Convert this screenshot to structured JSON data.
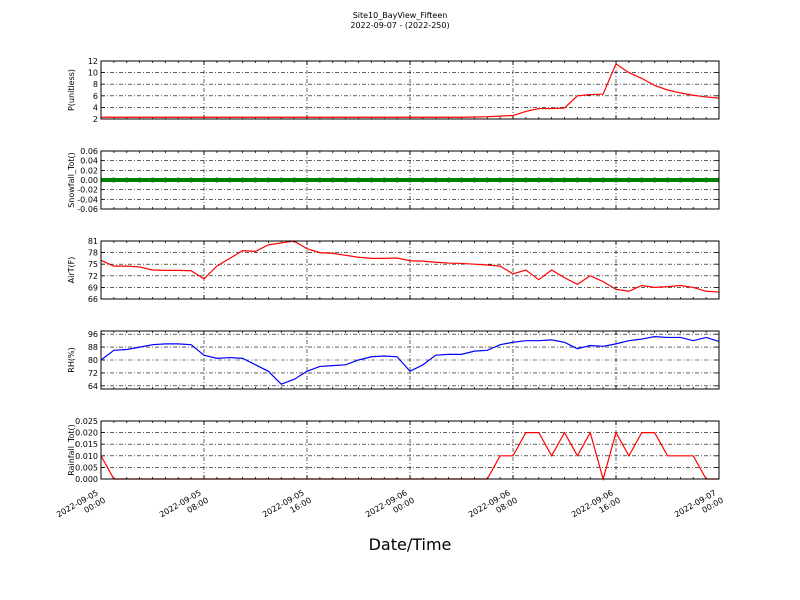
{
  "chart_data": [
    {
      "type": "line",
      "title": "Site10_BayView_Fifteen",
      "subtitle": "2022-09-07 - (2022-250)",
      "ylabel": "P(unitless)",
      "x": [
        "2022-09-05 00:00",
        "2022-09-05 01:00",
        "2022-09-05 02:00",
        "2022-09-05 03:00",
        "2022-09-05 04:00",
        "2022-09-05 05:00",
        "2022-09-05 06:00",
        "2022-09-05 07:00",
        "2022-09-05 08:00",
        "2022-09-05 09:00",
        "2022-09-05 10:00",
        "2022-09-05 11:00",
        "2022-09-05 12:00",
        "2022-09-05 13:00",
        "2022-09-05 14:00",
        "2022-09-05 15:00",
        "2022-09-05 16:00",
        "2022-09-05 17:00",
        "2022-09-05 18:00",
        "2022-09-05 19:00",
        "2022-09-05 20:00",
        "2022-09-05 21:00",
        "2022-09-05 22:00",
        "2022-09-05 23:00",
        "2022-09-06 00:00",
        "2022-09-06 01:00",
        "2022-09-06 02:00",
        "2022-09-06 03:00",
        "2022-09-06 04:00",
        "2022-09-06 05:00",
        "2022-09-06 06:00",
        "2022-09-06 07:00",
        "2022-09-06 08:00",
        "2022-09-06 09:00",
        "2022-09-06 10:00",
        "2022-09-06 11:00",
        "2022-09-06 12:00",
        "2022-09-06 13:00",
        "2022-09-06 14:00",
        "2022-09-06 15:00",
        "2022-09-06 16:00",
        "2022-09-06 17:00",
        "2022-09-06 18:00",
        "2022-09-06 19:00",
        "2022-09-06 20:00",
        "2022-09-06 21:00",
        "2022-09-06 22:00",
        "2022-09-06 23:00",
        "2022-09-07 00:00"
      ],
      "values": [
        2.3,
        2.3,
        2.3,
        2.3,
        2.3,
        2.3,
        2.3,
        2.3,
        2.3,
        2.3,
        2.3,
        2.3,
        2.3,
        2.3,
        2.3,
        2.3,
        2.3,
        2.3,
        2.3,
        2.3,
        2.3,
        2.3,
        2.3,
        2.3,
        2.3,
        2.3,
        2.3,
        2.3,
        2.3,
        2.35,
        2.4,
        2.5,
        2.6,
        3.3,
        3.8,
        3.8,
        3.9,
        6.0,
        6.2,
        6.3,
        11.5,
        10.0,
        9.0,
        7.8,
        7.0,
        6.5,
        6.1,
        5.8,
        5.6
      ],
      "color": "#ff0000",
      "xlim": [
        "2022-09-05 00:00",
        "2022-09-07 00:00"
      ],
      "xticks": [
        "2022-09-05 00:00",
        "2022-09-05 08:00",
        "2022-09-05 16:00",
        "2022-09-06 00:00",
        "2022-09-06 08:00",
        "2022-09-06 16:00",
        "2022-09-07 00:00"
      ],
      "ylim": [
        2,
        12
      ],
      "yticks": [
        2,
        4,
        6,
        8,
        10,
        12
      ],
      "grid": true,
      "show_xticklabels": false
    },
    {
      "type": "line",
      "ylabel": "Snowfall_Tot()",
      "x": [
        "2022-09-05 00:00",
        "2022-09-05 01:00",
        "2022-09-05 02:00",
        "2022-09-05 03:00",
        "2022-09-05 04:00",
        "2022-09-05 05:00",
        "2022-09-05 06:00",
        "2022-09-05 07:00",
        "2022-09-05 08:00",
        "2022-09-05 09:00",
        "2022-09-05 10:00",
        "2022-09-05 11:00",
        "2022-09-05 12:00",
        "2022-09-05 13:00",
        "2022-09-05 14:00",
        "2022-09-05 15:00",
        "2022-09-05 16:00",
        "2022-09-05 17:00",
        "2022-09-05 18:00",
        "2022-09-05 19:00",
        "2022-09-05 20:00",
        "2022-09-05 21:00",
        "2022-09-05 22:00",
        "2022-09-05 23:00",
        "2022-09-06 00:00",
        "2022-09-06 01:00",
        "2022-09-06 02:00",
        "2022-09-06 03:00",
        "2022-09-06 04:00",
        "2022-09-06 05:00",
        "2022-09-06 06:00",
        "2022-09-06 07:00",
        "2022-09-06 08:00",
        "2022-09-06 09:00",
        "2022-09-06 10:00",
        "2022-09-06 11:00",
        "2022-09-06 12:00",
        "2022-09-06 13:00",
        "2022-09-06 14:00",
        "2022-09-06 15:00",
        "2022-09-06 16:00",
        "2022-09-06 17:00",
        "2022-09-06 18:00",
        "2022-09-06 19:00",
        "2022-09-06 20:00",
        "2022-09-06 21:00",
        "2022-09-06 22:00",
        "2022-09-06 23:00",
        "2022-09-07 00:00"
      ],
      "values": [
        0,
        0,
        0,
        0,
        0,
        0,
        0,
        0,
        0,
        0,
        0,
        0,
        0,
        0,
        0,
        0,
        0,
        0,
        0,
        0,
        0,
        0,
        0,
        0,
        0,
        0,
        0,
        0,
        0,
        0,
        0,
        0,
        0,
        0,
        0,
        0,
        0,
        0,
        0,
        0,
        0,
        0,
        0,
        0,
        0,
        0,
        0,
        0,
        0
      ],
      "color": "#008000",
      "marker": "o",
      "xlim": [
        "2022-09-05 00:00",
        "2022-09-07 00:00"
      ],
      "xticks": [
        "2022-09-05 00:00",
        "2022-09-05 08:00",
        "2022-09-05 16:00",
        "2022-09-06 00:00",
        "2022-09-06 08:00",
        "2022-09-06 16:00",
        "2022-09-07 00:00"
      ],
      "ylim": [
        -0.06,
        0.06
      ],
      "yticks": [
        -0.06,
        -0.04,
        -0.02,
        {
          "value": 0,
          "label": "0.00"
        },
        0.02,
        0.04,
        0.06
      ],
      "grid": true,
      "show_xticklabels": false
    },
    {
      "type": "line",
      "ylabel": "AirT(F)",
      "x": [
        "2022-09-05 00:00",
        "2022-09-05 01:00",
        "2022-09-05 02:00",
        "2022-09-05 03:00",
        "2022-09-05 04:00",
        "2022-09-05 05:00",
        "2022-09-05 06:00",
        "2022-09-05 07:00",
        "2022-09-05 08:00",
        "2022-09-05 09:00",
        "2022-09-05 10:00",
        "2022-09-05 11:00",
        "2022-09-05 12:00",
        "2022-09-05 13:00",
        "2022-09-05 14:00",
        "2022-09-05 15:00",
        "2022-09-05 16:00",
        "2022-09-05 17:00",
        "2022-09-05 18:00",
        "2022-09-05 19:00",
        "2022-09-05 20:00",
        "2022-09-05 21:00",
        "2022-09-05 22:00",
        "2022-09-05 23:00",
        "2022-09-06 00:00",
        "2022-09-06 01:00",
        "2022-09-06 02:00",
        "2022-09-06 03:00",
        "2022-09-06 04:00",
        "2022-09-06 05:00",
        "2022-09-06 06:00",
        "2022-09-06 07:00",
        "2022-09-06 08:00",
        "2022-09-06 09:00",
        "2022-09-06 10:00",
        "2022-09-06 11:00",
        "2022-09-06 12:00",
        "2022-09-06 13:00",
        "2022-09-06 14:00",
        "2022-09-06 15:00",
        "2022-09-06 16:00",
        "2022-09-06 17:00",
        "2022-09-06 18:00",
        "2022-09-06 19:00",
        "2022-09-06 20:00",
        "2022-09-06 21:00",
        "2022-09-06 22:00",
        "2022-09-06 23:00",
        "2022-09-07 00:00"
      ],
      "values": [
        76,
        74.5,
        74.5,
        74.3,
        73.5,
        73.4,
        73.4,
        73.3,
        71.2,
        74.5,
        76.5,
        78.5,
        78.3,
        80,
        80.5,
        81,
        79,
        78,
        77.8,
        77.3,
        76.8,
        76.5,
        76.5,
        76.6,
        75.9,
        75.8,
        75.5,
        75.3,
        75.2,
        75,
        74.8,
        74.5,
        72.5,
        73.5,
        71,
        73.5,
        71.5,
        69.8,
        72,
        70.5,
        68.5,
        68,
        69.5,
        69,
        69.2,
        69.5,
        69,
        68,
        67.8
      ],
      "color": "#ff0000",
      "xlim": [
        "2022-09-05 00:00",
        "2022-09-07 00:00"
      ],
      "xticks": [
        "2022-09-05 00:00",
        "2022-09-05 08:00",
        "2022-09-05 16:00",
        "2022-09-06 00:00",
        "2022-09-06 08:00",
        "2022-09-06 16:00",
        "2022-09-07 00:00"
      ],
      "ylim": [
        66,
        81
      ],
      "yticks": [
        66,
        69,
        72,
        75,
        78,
        81
      ],
      "grid": true,
      "show_xticklabels": false
    },
    {
      "type": "line",
      "ylabel": "RH(%)",
      "x": [
        "2022-09-05 00:00",
        "2022-09-05 01:00",
        "2022-09-05 02:00",
        "2022-09-05 03:00",
        "2022-09-05 04:00",
        "2022-09-05 05:00",
        "2022-09-05 06:00",
        "2022-09-05 07:00",
        "2022-09-05 08:00",
        "2022-09-05 09:00",
        "2022-09-05 10:00",
        "2022-09-05 11:00",
        "2022-09-05 12:00",
        "2022-09-05 13:00",
        "2022-09-05 14:00",
        "2022-09-05 15:00",
        "2022-09-05 16:00",
        "2022-09-05 17:00",
        "2022-09-05 18:00",
        "2022-09-05 19:00",
        "2022-09-05 20:00",
        "2022-09-05 21:00",
        "2022-09-05 22:00",
        "2022-09-05 23:00",
        "2022-09-06 00:00",
        "2022-09-06 01:00",
        "2022-09-06 02:00",
        "2022-09-06 03:00",
        "2022-09-06 04:00",
        "2022-09-06 05:00",
        "2022-09-06 06:00",
        "2022-09-06 07:00",
        "2022-09-06 08:00",
        "2022-09-06 09:00",
        "2022-09-06 10:00",
        "2022-09-06 11:00",
        "2022-09-06 12:00",
        "2022-09-06 13:00",
        "2022-09-06 14:00",
        "2022-09-06 15:00",
        "2022-09-06 16:00",
        "2022-09-06 17:00",
        "2022-09-06 18:00",
        "2022-09-06 19:00",
        "2022-09-06 20:00",
        "2022-09-06 21:00",
        "2022-09-06 22:00",
        "2022-09-06 23:00",
        "2022-09-07 00:00"
      ],
      "values": [
        80,
        86,
        86.5,
        88,
        89.5,
        90,
        90,
        89.5,
        83,
        81,
        81.5,
        81,
        77,
        73,
        65,
        68,
        73,
        76,
        76.5,
        77,
        80,
        82,
        82.5,
        82,
        73,
        77,
        83,
        83.5,
        83.5,
        85.5,
        86,
        89.5,
        91,
        92,
        92,
        92.5,
        91,
        87,
        89,
        88.5,
        90,
        92,
        93,
        94.5,
        94,
        94,
        92,
        94,
        91.5
      ],
      "color": "#0000ff",
      "xlim": [
        "2022-09-05 00:00",
        "2022-09-07 00:00"
      ],
      "xticks": [
        "2022-09-05 00:00",
        "2022-09-05 08:00",
        "2022-09-05 16:00",
        "2022-09-06 00:00",
        "2022-09-06 08:00",
        "2022-09-06 16:00",
        "2022-09-07 00:00"
      ],
      "ylim": [
        62,
        98
      ],
      "yticks": [
        64,
        72,
        80,
        88,
        96
      ],
      "grid": true,
      "show_xticklabels": false
    },
    {
      "type": "line",
      "ylabel": "Rainfall_Tot()",
      "xlabel": "Date/Time",
      "x": [
        "2022-09-05 00:00",
        "2022-09-05 01:00",
        "2022-09-05 02:00",
        "2022-09-05 03:00",
        "2022-09-05 04:00",
        "2022-09-05 05:00",
        "2022-09-05 06:00",
        "2022-09-05 07:00",
        "2022-09-05 08:00",
        "2022-09-05 09:00",
        "2022-09-05 10:00",
        "2022-09-05 11:00",
        "2022-09-05 12:00",
        "2022-09-05 13:00",
        "2022-09-05 14:00",
        "2022-09-05 15:00",
        "2022-09-05 16:00",
        "2022-09-05 17:00",
        "2022-09-05 18:00",
        "2022-09-05 19:00",
        "2022-09-05 20:00",
        "2022-09-05 21:00",
        "2022-09-05 22:00",
        "2022-09-05 23:00",
        "2022-09-06 00:00",
        "2022-09-06 01:00",
        "2022-09-06 02:00",
        "2022-09-06 03:00",
        "2022-09-06 04:00",
        "2022-09-06 05:00",
        "2022-09-06 06:00",
        "2022-09-06 07:00",
        "2022-09-06 08:00",
        "2022-09-06 09:00",
        "2022-09-06 10:00",
        "2022-09-06 11:00",
        "2022-09-06 12:00",
        "2022-09-06 13:00",
        "2022-09-06 14:00",
        "2022-09-06 15:00",
        "2022-09-06 16:00",
        "2022-09-06 17:00",
        "2022-09-06 18:00",
        "2022-09-06 19:00",
        "2022-09-06 20:00",
        "2022-09-06 21:00",
        "2022-09-06 22:00",
        "2022-09-06 23:00",
        "2022-09-07 00:00"
      ],
      "values": [
        0.01,
        0,
        0,
        0,
        0,
        0,
        0,
        0,
        0,
        0,
        0,
        0,
        0,
        0,
        0,
        0,
        0,
        0,
        0,
        0,
        0,
        0,
        0,
        0,
        0,
        0,
        0,
        0,
        0,
        0,
        0,
        0.01,
        0.01,
        0.02,
        0.02,
        0.01,
        0.02,
        0.01,
        0.02,
        0,
        0.02,
        0.01,
        0.02,
        0.02,
        0.01,
        0.01,
        0.01,
        0,
        0
      ],
      "color": "#ff0000",
      "xlim": [
        "2022-09-05 00:00",
        "2022-09-07 00:00"
      ],
      "xticks": [
        "2022-09-05 00:00",
        "2022-09-05 08:00",
        "2022-09-05 16:00",
        "2022-09-06 00:00",
        "2022-09-06 08:00",
        "2022-09-06 16:00",
        "2022-09-07 00:00"
      ],
      "ylim": [
        0,
        0.025
      ],
      "yticks": [
        {
          "value": 0,
          "label": "0.000"
        },
        0.005,
        {
          "value": 0.01,
          "label": "0.010"
        },
        0.015,
        {
          "value": 0.02,
          "label": "0.020"
        },
        0.025
      ],
      "grid": true,
      "show_xticklabels": true
    }
  ]
}
